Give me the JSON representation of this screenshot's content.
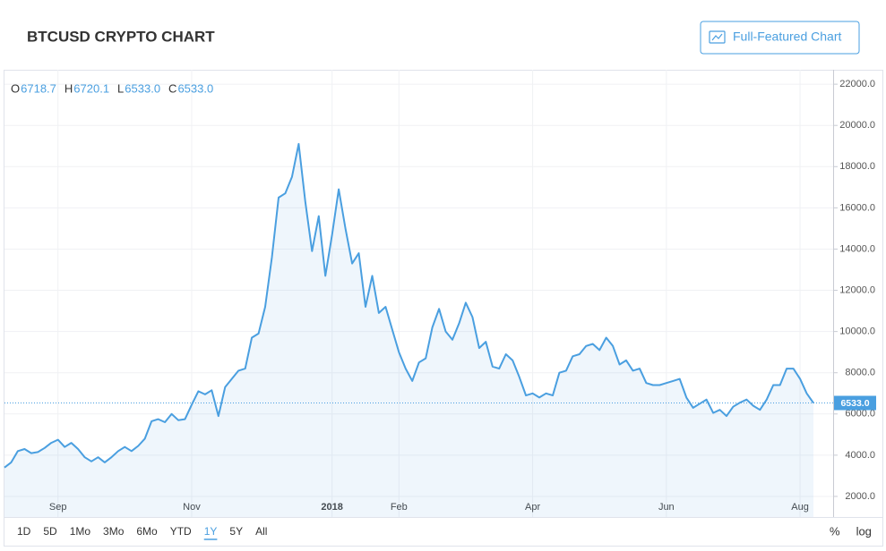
{
  "chart_data": {
    "type": "line",
    "title": "BTCUSD CRYPTO CHART",
    "button": "Full-Featured Chart",
    "ohlc": [
      {
        "key": "O",
        "value": "6718.7"
      },
      {
        "key": "H",
        "value": "6720.1"
      },
      {
        "key": "L",
        "value": "6533.0"
      },
      {
        "key": "C",
        "value": "6533.0"
      }
    ],
    "categories": [
      null,
      null,
      null,
      null,
      null,
      null,
      null,
      null,
      "Sep",
      null,
      null,
      null,
      null,
      null,
      null,
      null,
      null,
      null,
      null,
      null,
      null,
      null,
      null,
      null,
      null,
      null,
      null,
      null,
      "Nov",
      null,
      null,
      null,
      null,
      null,
      null,
      null,
      null,
      null,
      null,
      null,
      null,
      null,
      null,
      null,
      null,
      null,
      null,
      null,
      null,
      "2018",
      null,
      null,
      null,
      null,
      null,
      null,
      null,
      null,
      null,
      "Feb",
      null,
      null,
      null,
      null,
      null,
      null,
      null,
      null,
      null,
      null,
      null,
      null,
      null,
      null,
      null,
      null,
      null,
      null,
      null,
      "Apr",
      null,
      null,
      null,
      null,
      null,
      null,
      null,
      null,
      null,
      null,
      null,
      null,
      null,
      null,
      null,
      null,
      null,
      null,
      null,
      "Jun",
      null,
      null,
      null,
      null,
      null,
      null,
      null,
      null,
      null,
      null,
      null,
      null,
      null,
      null,
      null,
      null,
      null,
      null,
      null,
      "Aug",
      null,
      null
    ],
    "values": [
      3400,
      3650,
      4200,
      4300,
      4100,
      4150,
      4350,
      4600,
      4750,
      4400,
      4600,
      4300,
      3900,
      3700,
      3900,
      3650,
      3900,
      4200,
      4400,
      4200,
      4450,
      4800,
      5650,
      5750,
      5600,
      6000,
      5700,
      5750,
      6450,
      7100,
      6950,
      7150,
      5900,
      7300,
      7700,
      8100,
      8200,
      9700,
      9900,
      11200,
      13600,
      16500,
      16700,
      17500,
      19100,
      16300,
      13900,
      15600,
      12700,
      14700,
      16900,
      15000,
      13300,
      13800,
      11200,
      12700,
      10900,
      11200,
      10100,
      9000,
      8200,
      7600,
      8500,
      8700,
      10200,
      11100,
      10000,
      9600,
      10400,
      11400,
      10700,
      9200,
      9500,
      8300,
      8200,
      8900,
      8600,
      7800,
      6900,
      7000,
      6800,
      7000,
      6900,
      8000,
      8100,
      8800,
      8900,
      9300,
      9400,
      9100,
      9700,
      9300,
      8400,
      8600,
      8100,
      8200,
      7500,
      7400,
      7400,
      7500,
      7600,
      7700,
      6800,
      6300,
      6500,
      6700,
      6050,
      6200,
      5900,
      6350,
      6550,
      6700,
      6400,
      6200,
      6700,
      7400,
      7400,
      8200,
      8200,
      7700,
      7000,
      6533.0
    ],
    "value_labels": [
      null,
      null,
      null,
      null,
      null,
      null,
      null,
      null,
      null,
      null,
      null,
      null,
      null,
      null,
      null,
      null,
      null,
      null,
      null,
      null,
      null,
      null,
      null,
      null,
      null,
      null,
      null,
      null,
      null,
      null,
      null,
      null,
      null,
      null,
      null,
      null,
      null,
      null,
      null,
      null,
      null,
      null,
      null,
      null,
      null,
      null,
      null,
      null,
      null,
      null,
      null,
      null,
      null,
      null,
      null,
      null,
      null,
      null,
      null,
      null,
      null,
      null,
      null,
      null,
      null,
      null,
      null,
      null,
      null,
      null,
      null,
      null,
      null,
      null,
      null,
      null,
      null,
      null,
      null,
      null,
      null,
      null,
      null,
      null,
      null,
      null,
      null,
      null,
      null,
      null,
      null,
      null,
      null,
      null,
      null,
      null,
      null,
      null,
      null,
      null,
      null,
      null,
      null,
      null,
      null,
      null,
      null,
      null,
      null,
      null,
      null,
      null,
      null,
      null,
      null,
      null,
      null,
      null,
      null,
      null,
      null,
      "6533.0"
    ],
    "color": "#4a9fe0",
    "ylim": [
      1000,
      22700
    ],
    "yticks": [
      {
        "value": 2000,
        "label": "2000.0"
      },
      {
        "value": 4000,
        "label": "4000.0"
      },
      {
        "value": 6000,
        "label": "6000.0"
      },
      {
        "value": 8000,
        "label": "8000.0"
      },
      {
        "value": 10000,
        "label": "10000.0"
      },
      {
        "value": 12000,
        "label": "12000.0"
      },
      {
        "value": 14000,
        "label": "14000.0"
      },
      {
        "value": 16000,
        "label": "16000.0"
      },
      {
        "value": 18000,
        "label": "18000.0"
      },
      {
        "value": 20000,
        "label": "20000.0"
      },
      {
        "value": 22000,
        "label": "22000.0"
      }
    ],
    "grid": true,
    "ranges": [
      "1D",
      "5D",
      "1Mo",
      "3Mo",
      "6Mo",
      "YTD",
      "1Y",
      "5Y",
      "All"
    ],
    "selected_range": 6,
    "scale_options": [
      "%",
      "log"
    ]
  }
}
